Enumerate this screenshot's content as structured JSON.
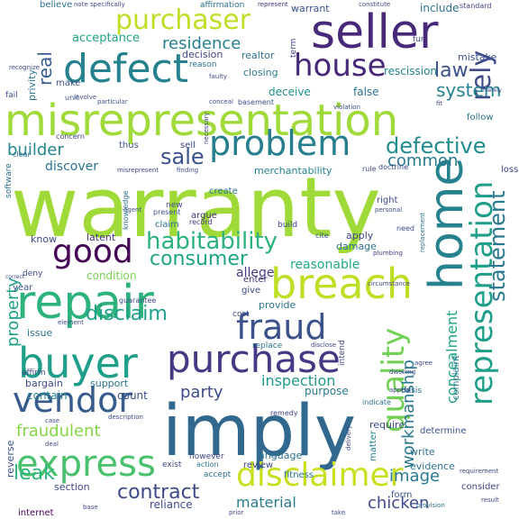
{
  "words": [
    {
      "text": "warranty",
      "color": "#a0da39"
    },
    {
      "text": "misrepresentation",
      "color": "#a0da39"
    },
    {
      "text": "imply",
      "color": "#31688e"
    },
    {
      "text": "defect",
      "color": "#26828e"
    },
    {
      "text": "seller",
      "color": "#482878"
    },
    {
      "text": "repair",
      "color": "#2db27d"
    },
    {
      "text": "breach",
      "color": "#bddf26"
    },
    {
      "text": "buyer",
      "color": "#1f9e89"
    },
    {
      "text": "purchase",
      "color": "#443983"
    },
    {
      "text": "home",
      "color": "#26828e"
    },
    {
      "text": "purchaser",
      "color": "#bddf26"
    },
    {
      "text": "house",
      "color": "#482878"
    },
    {
      "text": "problem",
      "color": "#277f8e"
    },
    {
      "text": "representation",
      "color": "#1f9e89"
    },
    {
      "text": "quality",
      "color": "#73d056"
    },
    {
      "text": "express",
      "color": "#4ac16d"
    },
    {
      "text": "disclaimer",
      "color": "#c8e020"
    },
    {
      "text": "vendor",
      "color": "#365c8d"
    },
    {
      "text": "good",
      "color": "#440154"
    },
    {
      "text": "fraud",
      "color": "#3b528b"
    },
    {
      "text": "habitability",
      "color": "#2db27d"
    },
    {
      "text": "rely",
      "color": "#3e4a89"
    },
    {
      "text": "law",
      "color": "#3b528b"
    },
    {
      "text": "defective",
      "color": "#228c8d"
    },
    {
      "text": "statement",
      "color": "#2a788e"
    },
    {
      "text": "sale",
      "color": "#3b528b"
    },
    {
      "text": "system",
      "color": "#26828e"
    },
    {
      "text": "disclaim",
      "color": "#1f9e89"
    },
    {
      "text": "consumer",
      "color": "#20a486"
    },
    {
      "text": "real",
      "color": "#365c8d"
    },
    {
      "text": "residence",
      "color": "#277f8e"
    },
    {
      "text": "contract",
      "color": "#3e4a89"
    },
    {
      "text": "fraudulent",
      "color": "#86d549"
    },
    {
      "text": "workmanship",
      "color": "#2a788e"
    },
    {
      "text": "builder",
      "color": "#25848e"
    },
    {
      "text": "common",
      "color": "#2a788e"
    },
    {
      "text": "concealment",
      "color": "#20a486"
    },
    {
      "text": "leak",
      "color": "#2fb47c"
    },
    {
      "text": "material",
      "color": "#287c8e"
    },
    {
      "text": "chicken",
      "color": "#3e4a89"
    },
    {
      "text": "image",
      "color": "#2a788e"
    },
    {
      "text": "party",
      "color": "#3e4a89"
    },
    {
      "text": "property",
      "color": "#1fa188"
    },
    {
      "text": "discover",
      "color": "#2c728e"
    },
    {
      "text": "inspection",
      "color": "#1f9a8a"
    },
    {
      "text": "reasonable",
      "color": "#22a884"
    },
    {
      "text": "allege",
      "color": "#433e85"
    },
    {
      "text": "warrant",
      "color": "#3b528b"
    },
    {
      "text": "include",
      "color": "#2c728e"
    },
    {
      "text": "acceptance",
      "color": "#1fa188"
    },
    {
      "text": "decision",
      "color": "#414487"
    },
    {
      "text": "realtor",
      "color": "#2d708e"
    },
    {
      "text": "rescission",
      "color": "#24868e"
    },
    {
      "text": "mistake",
      "color": "#3b528b"
    },
    {
      "text": "closing",
      "color": "#287d8e"
    },
    {
      "text": "deceive",
      "color": "#21918c"
    },
    {
      "text": "false",
      "color": "#2c728e"
    },
    {
      "text": "merchantability",
      "color": "#25858e"
    },
    {
      "text": "thus",
      "color": "#3b528b"
    },
    {
      "text": "sell",
      "color": "#3e4a89"
    },
    {
      "text": "claim",
      "color": "#2c728e"
    },
    {
      "text": "argue",
      "color": "#46337e"
    },
    {
      "text": "create",
      "color": "#2c728e"
    },
    {
      "text": "right",
      "color": "#3e4a89"
    },
    {
      "text": "know",
      "color": "#3e4a89"
    },
    {
      "text": "latent",
      "color": "#46327e"
    },
    {
      "text": "damage",
      "color": "#2c728e"
    },
    {
      "text": "apply",
      "color": "#414487"
    },
    {
      "text": "condition",
      "color": "#7ad151"
    },
    {
      "text": "issue",
      "color": "#2c728e"
    },
    {
      "text": "count",
      "color": "#3b528b"
    },
    {
      "text": "contain",
      "color": "#25858e"
    },
    {
      "text": "purpose",
      "color": "#2a788e"
    },
    {
      "text": "require",
      "color": "#3e4a89"
    },
    {
      "text": "reliance",
      "color": "#3e4a89"
    },
    {
      "text": "write",
      "color": "#2c728e"
    },
    {
      "text": "evidence",
      "color": "#2c728e"
    },
    {
      "text": "complaint",
      "color": "#2a788e"
    },
    {
      "text": "matter",
      "color": "#26828e"
    },
    {
      "text": "language",
      "color": "#2c728e"
    },
    {
      "text": "review",
      "color": "#3e4a89"
    },
    {
      "text": "fitness",
      "color": "#2c728e"
    },
    {
      "text": "provide",
      "color": "#2c728e"
    },
    {
      "text": "give",
      "color": "#3e4a89"
    },
    {
      "text": "enter",
      "color": "#46337e"
    },
    {
      "text": "support",
      "color": "#2c728e"
    },
    {
      "text": "bargain",
      "color": "#3e4a89"
    },
    {
      "text": "reverse",
      "color": "#3b528b"
    },
    {
      "text": "section",
      "color": "#3e4a89"
    },
    {
      "text": "internet",
      "color": "#440154"
    },
    {
      "text": "standard",
      "color": "#414487"
    },
    {
      "text": "term",
      "color": "#414487"
    },
    {
      "text": "privity",
      "color": "#2a788e"
    },
    {
      "text": "believe",
      "color": "#2c728e"
    },
    {
      "text": "represent",
      "color": "#46337e"
    },
    {
      "text": "affirmation",
      "color": "#2c728e"
    },
    {
      "text": "reason",
      "color": "#2c728e"
    },
    {
      "text": "make",
      "color": "#3b528b"
    },
    {
      "text": "intend",
      "color": "#3e4a89"
    },
    {
      "text": "replace",
      "color": "#2c728e"
    },
    {
      "text": "year",
      "color": "#3b528b"
    },
    {
      "text": "deny",
      "color": "#3e4a89"
    },
    {
      "text": "however",
      "color": "#3e4a89"
    },
    {
      "text": "exist",
      "color": "#3e4a89"
    },
    {
      "text": "accept",
      "color": "#2c728e"
    },
    {
      "text": "action",
      "color": "#2a788e"
    },
    {
      "text": "determine",
      "color": "#3b528b"
    },
    {
      "text": "basis",
      "color": "#2c728e"
    },
    {
      "text": "consider",
      "color": "#414487"
    },
    {
      "text": "form",
      "color": "#3b528b"
    },
    {
      "text": "software",
      "color": "#2c728e"
    },
    {
      "text": "affirm",
      "color": "#3e4a89"
    },
    {
      "text": "cost",
      "color": "#3e4a89"
    },
    {
      "text": "follow",
      "color": "#2c728e"
    },
    {
      "text": "loss",
      "color": "#3e4a89"
    },
    {
      "text": "cite",
      "color": "#3b528b"
    },
    {
      "text": "unit",
      "color": "#3b528b"
    },
    {
      "text": "fail",
      "color": "#3b528b"
    },
    {
      "text": "build",
      "color": "#3e4a89"
    },
    {
      "text": "need",
      "color": "#3e4a89"
    },
    {
      "text": "record",
      "color": "#46337e"
    },
    {
      "text": "knowledge",
      "color": "#2c728e"
    },
    {
      "text": "present",
      "color": "#3b528b"
    },
    {
      "text": "new",
      "color": "#3e4a89"
    },
    {
      "text": "guarantee",
      "color": "#3e4a89"
    },
    {
      "text": "indicate",
      "color": "#2c728e"
    },
    {
      "text": "remedy",
      "color": "#414487"
    },
    {
      "text": "plumbing",
      "color": "#414487"
    },
    {
      "text": "provision",
      "color": "#2c728e"
    },
    {
      "text": "element",
      "color": "#3e4a89"
    },
    {
      "text": "disclose",
      "color": "#3e4a89"
    },
    {
      "text": "clear",
      "color": "#2c728e"
    },
    {
      "text": "doctrine",
      "color": "#3e4a89"
    },
    {
      "text": "particular",
      "color": "#3b528b"
    },
    {
      "text": "basement",
      "color": "#3e4a89"
    },
    {
      "text": "dwelling",
      "color": "#3e4a89"
    },
    {
      "text": "replacement",
      "color": "#2c728e"
    },
    {
      "text": "delivery",
      "color": "#3e4a89"
    },
    {
      "text": "agent",
      "color": "#3e4a89"
    },
    {
      "text": "fur",
      "color": "#3e4a89"
    },
    {
      "text": "rule",
      "color": "#3e4a89"
    },
    {
      "text": "concern",
      "color": "#3e4a89"
    },
    {
      "text": "necessary",
      "color": "#3e4a89"
    },
    {
      "text": "conceal",
      "color": "#3e4a89"
    },
    {
      "text": "violation",
      "color": "#3e4a89"
    },
    {
      "text": "recognize",
      "color": "#3e4a89"
    },
    {
      "text": "faulty",
      "color": "#3e4a89"
    },
    {
      "text": "misrepresent",
      "color": "#3e4a89"
    },
    {
      "text": "involve",
      "color": "#3e4a89"
    },
    {
      "text": "circumstance",
      "color": "#3e4a89"
    },
    {
      "text": "finding",
      "color": "#3e4a89"
    },
    {
      "text": "base",
      "color": "#3e4a89"
    },
    {
      "text": "deal",
      "color": "#3e4a89"
    },
    {
      "text": "case",
      "color": "#3e4a89"
    },
    {
      "text": "agree",
      "color": "#3e4a89"
    },
    {
      "text": "appear",
      "color": "#3e4a89"
    },
    {
      "text": "personal",
      "color": "#3e4a89"
    },
    {
      "text": "description",
      "color": "#3e4a89"
    },
    {
      "text": "requirement",
      "color": "#3e4a89"
    },
    {
      "text": "merely",
      "color": "#3e4a89"
    },
    {
      "text": "note specifically",
      "color": "#3e4a89"
    },
    {
      "text": "constitute",
      "color": "#3e4a89"
    },
    {
      "text": "correct",
      "color": "#3e4a89"
    },
    {
      "text": "prior",
      "color": "#3e4a89"
    },
    {
      "text": "take",
      "color": "#3e4a89"
    },
    {
      "text": "result",
      "color": "#3e4a89"
    },
    {
      "text": "fit",
      "color": "#3e4a89"
    }
  ]
}
